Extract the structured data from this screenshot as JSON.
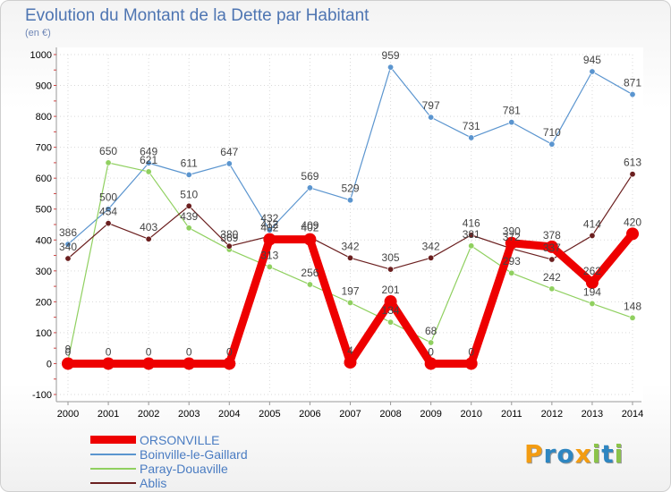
{
  "title": "Evolution du Montant de la Dette par Habitant",
  "unit": "(en €)",
  "chart_data": {
    "type": "line",
    "title": "Evolution du Montant de la Dette par Habitant",
    "ylabel": "(en €)",
    "xlabel": "",
    "ylim": [
      -100,
      1000
    ],
    "yticks": [
      -100,
      0,
      100,
      200,
      300,
      400,
      500,
      600,
      700,
      800,
      900,
      1000
    ],
    "x": [
      "2000",
      "2001",
      "2002",
      "2003",
      "2004",
      "2005",
      "2006",
      "2007",
      "2008",
      "2009",
      "2010",
      "2011",
      "2012",
      "2013",
      "2014"
    ],
    "grid": true,
    "legend": "bottom-left",
    "series": [
      {
        "name": "ORSONVILLE",
        "color": "#ee0000",
        "values": [
          0,
          0,
          0,
          0,
          0,
          402,
          402,
          4,
          201,
          0,
          0,
          390,
          378,
          262,
          420
        ]
      },
      {
        "name": "Boinville-le-Gaillard",
        "color": "#5b95cf",
        "values": [
          386,
          500,
          649,
          611,
          647,
          432,
          569,
          529,
          959,
          797,
          731,
          781,
          710,
          945,
          871
        ]
      },
      {
        "name": "Paray-Douaville",
        "color": "#90d060",
        "values": [
          9,
          650,
          621,
          439,
          369,
          313,
          256,
          197,
          134,
          68,
          381,
          293,
          242,
          194,
          148
        ]
      },
      {
        "name": "Ablis",
        "color": "#6b1f1f",
        "values": [
          340,
          454,
          403,
          510,
          380,
          412,
          409,
          342,
          305,
          342,
          416,
          372,
          337,
          414,
          613
        ]
      }
    ]
  },
  "legend": {
    "items": [
      {
        "label": "ORSONVILLE",
        "color": "#ee0000"
      },
      {
        "label": "Boinville-le-Gaillard",
        "color": "#5b95cf"
      },
      {
        "label": "Paray-Douaville",
        "color": "#90d060"
      },
      {
        "label": "Ablis",
        "color": "#6b1f1f"
      }
    ]
  },
  "logo": {
    "letters": [
      "P",
      "r",
      "o",
      "x",
      "i",
      "t",
      "i"
    ],
    "colors": [
      "#f39c12",
      "#2e86c1",
      "#2e86c1",
      "#f39c12",
      "#8bc34a",
      "#2e86c1",
      "#8bc34a"
    ]
  }
}
